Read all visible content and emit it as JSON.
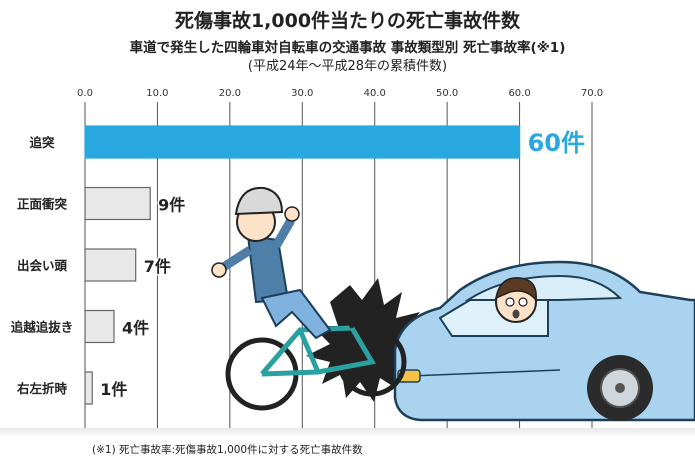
{
  "chart_data": {
    "type": "bar",
    "orientation": "horizontal",
    "title": "死傷事故1,000件当たりの死亡事故件数",
    "subtitle": "車道で発生した四輪車対自転車の交通事故 事故類型別 死亡事故率(※1)",
    "period": "(平成24年〜平成28年の累積件数)",
    "categories": [
      "追突",
      "正面衝突",
      "出会い頭",
      "追越追抜き",
      "右左折時"
    ],
    "values": [
      60,
      9,
      7,
      4,
      1
    ],
    "data_labels": [
      "60件",
      "9件",
      "7件",
      "4件",
      "1件"
    ],
    "xlim": [
      0,
      70
    ],
    "x_ticks": [
      "0.0",
      "10.0",
      "20.0",
      "30.0",
      "40.0",
      "50.0",
      "60.0",
      "70.0"
    ],
    "grid": true,
    "colors": {
      "highlight": "#29a8e0",
      "normal": "#e8e8e8",
      "bar_stroke": "#666666",
      "highlight_label": "#29a8e0"
    }
  },
  "footnote": "(※1) 死亡事故率:死傷事故1,000件に対する死亡事故件数",
  "illustration": "cyclist-hit-by-car"
}
